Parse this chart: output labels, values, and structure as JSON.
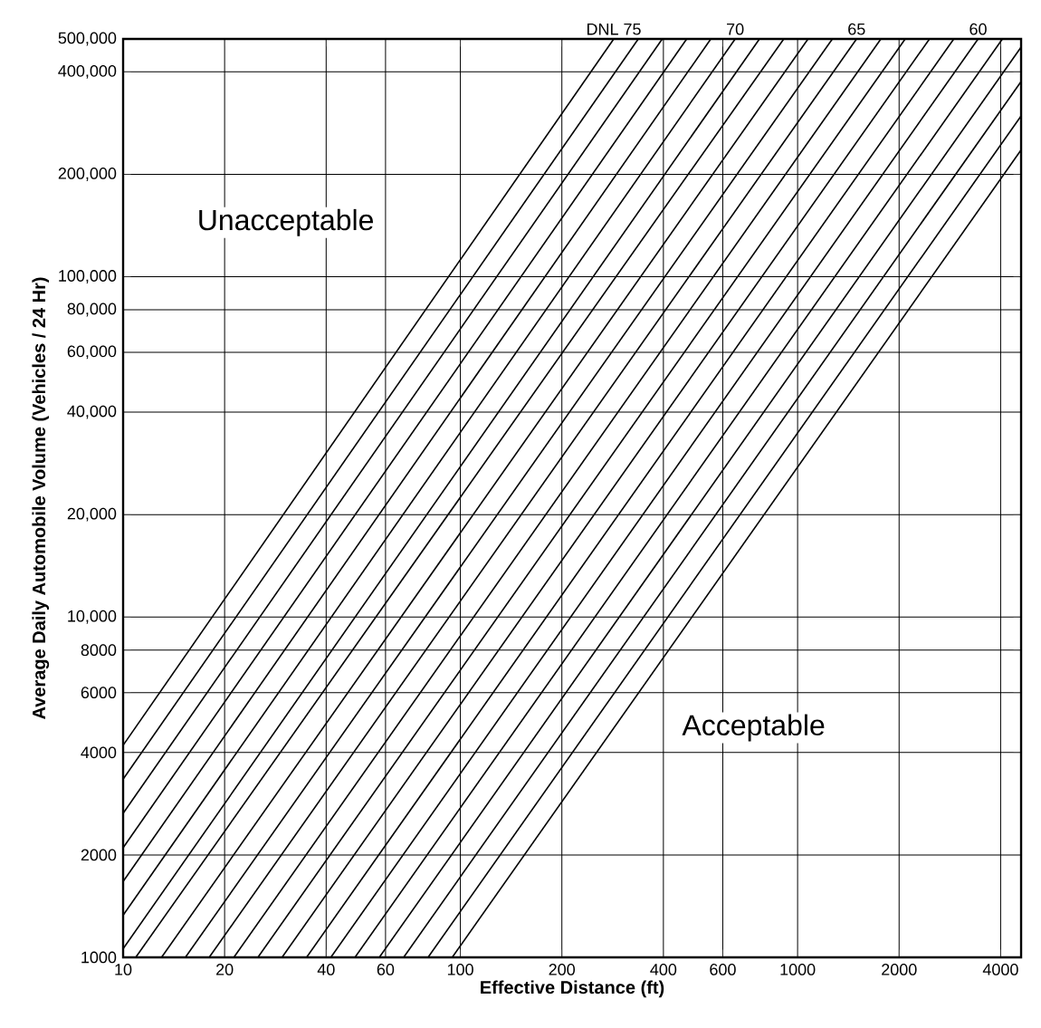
{
  "chart_data": {
    "type": "line",
    "xlabel": "Effective Distance (ft)",
    "ylabel": "Average Daily Automobile Volume (Vehicles / 24 Hr)",
    "log": "xy",
    "grid": true,
    "legend": false,
    "marker": "none",
    "line_style": "solid",
    "xlim": [
      10,
      4600
    ],
    "ylim": [
      1000,
      500000
    ],
    "xticks": [
      10,
      20,
      40,
      60,
      100,
      200,
      400,
      600,
      1000,
      2000,
      4000
    ],
    "yticks": [
      1000,
      2000,
      4000,
      6000,
      8000,
      {
        "value": 10000,
        "label": "10,000"
      },
      {
        "value": 20000,
        "label": "20,000"
      },
      {
        "value": 40000,
        "label": "40,000"
      },
      {
        "value": 60000,
        "label": "60,000"
      },
      {
        "value": 80000,
        "label": "80,000"
      },
      {
        "value": 100000,
        "label": "100,000"
      },
      {
        "value": 200000,
        "label": "200,000"
      },
      {
        "value": 400000,
        "label": "400,000"
      },
      {
        "value": 500000,
        "label": "500,000"
      }
    ],
    "annotations": [
      "Unacceptable",
      "Acceptable"
    ],
    "series": [
      {
        "name": "DNL 75",
        "color": "#000000",
        "x": [
          10,
          285
        ],
        "values": [
          4200,
          500000
        ]
      },
      {
        "color": "#000000",
        "x": [
          10,
          337
        ],
        "values": [
          3340,
          500000
        ]
      },
      {
        "color": "#000000",
        "x": [
          10,
          397
        ],
        "values": [
          2650,
          500000
        ]
      },
      {
        "color": "#000000",
        "x": [
          10,
          469
        ],
        "values": [
          2100,
          500000
        ]
      },
      {
        "color": "#000000",
        "x": [
          10,
          553
        ],
        "values": [
          1670,
          500000
        ]
      },
      {
        "name": "70",
        "color": "#000000",
        "x": [
          10,
          653
        ],
        "values": [
          1330,
          500000
        ]
      },
      {
        "color": "#000000",
        "x": [
          10,
          771
        ],
        "values": [
          1060,
          500000
        ]
      },
      {
        "color": "#000000",
        "x": [
          10.9,
          910
        ],
        "values": [
          1000,
          500000
        ]
      },
      {
        "color": "#000000",
        "x": [
          13,
          1074
        ],
        "values": [
          1000,
          500000
        ]
      },
      {
        "color": "#000000",
        "x": [
          15.3,
          1268
        ],
        "values": [
          1000,
          500000
        ]
      },
      {
        "name": "65",
        "color": "#000000",
        "x": [
          18,
          1496
        ],
        "values": [
          1000,
          500000
        ]
      },
      {
        "color": "#000000",
        "x": [
          21.3,
          1766
        ],
        "values": [
          1000,
          500000
        ]
      },
      {
        "color": "#000000",
        "x": [
          25.1,
          2085
        ],
        "values": [
          1000,
          500000
        ]
      },
      {
        "color": "#000000",
        "x": [
          29.6,
          2461
        ],
        "values": [
          1000,
          500000
        ]
      },
      {
        "color": "#000000",
        "x": [
          35,
          2905
        ],
        "values": [
          1000,
          500000
        ]
      },
      {
        "name": "60",
        "color": "#000000",
        "x": [
          41.3,
          3430
        ],
        "values": [
          1000,
          500000
        ]
      },
      {
        "color": "#000000",
        "x": [
          48.7,
          4049
        ],
        "values": [
          1000,
          500000
        ]
      },
      {
        "color": "#000000",
        "x": [
          57.5,
          4600
        ],
        "values": [
          1000,
          473000
        ]
      },
      {
        "color": "#000000",
        "x": [
          67.9,
          4600
        ],
        "values": [
          1000,
          375000
        ]
      },
      {
        "color": "#000000",
        "x": [
          80.2,
          4600
        ],
        "values": [
          1000,
          297000
        ]
      },
      {
        "color": "#000000",
        "x": [
          94.6,
          4600
        ],
        "values": [
          1000,
          236000
        ]
      }
    ]
  }
}
